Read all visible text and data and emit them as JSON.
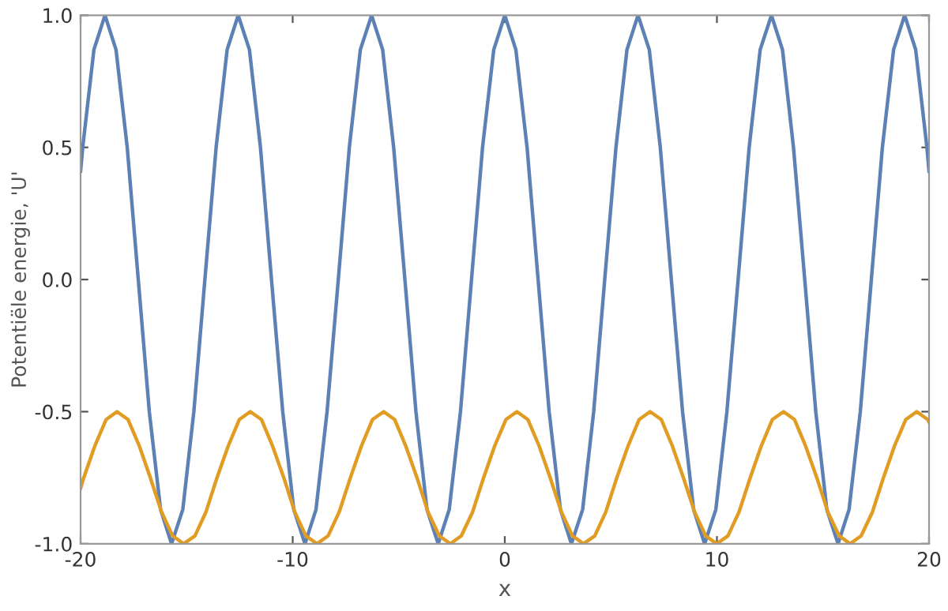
{
  "chart_data": {
    "type": "line",
    "xlabel": "x",
    "ylabel": "Potentiële energie, 'U'",
    "xlim": [
      -20,
      20
    ],
    "ylim": [
      -1,
      1
    ],
    "xticks": [
      -20,
      -10,
      0,
      10,
      20
    ],
    "yticks": [
      {
        "value": -1,
        "label": "-1.0"
      },
      {
        "value": -0.5,
        "label": "-0.5"
      },
      {
        "value": 0,
        "label": "0.0"
      },
      {
        "value": 0.5,
        "label": "0.5"
      },
      {
        "value": 1,
        "label": "1.0"
      }
    ],
    "grid": false,
    "legend": false,
    "marker": "none",
    "line_style": "solid",
    "series": [
      {
        "color": "#5e81b5",
        "x": [
          -20,
          -19.9,
          -19.37,
          -18.85,
          -18.33,
          -17.8,
          -17.28,
          -16.76,
          -16.23,
          -15.71,
          -15.18,
          -14.66,
          -14.14,
          -13.61,
          -13.09,
          -12.57,
          -12.04,
          -11.52,
          -11.0,
          -10.47,
          -9.95,
          -9.42,
          -8.9,
          -8.38,
          -7.85,
          -7.33,
          -6.81,
          -6.28,
          -5.76,
          -5.24,
          -4.71,
          -4.19,
          -3.67,
          -3.14,
          -2.62,
          -2.09,
          -1.57,
          -1.05,
          -0.52,
          0,
          0.52,
          1.05,
          1.57,
          2.09,
          2.62,
          3.14,
          3.67,
          4.19,
          4.71,
          5.24,
          5.76,
          6.28,
          6.81,
          7.33,
          7.85,
          8.38,
          8.9,
          9.42,
          9.95,
          10.47,
          11.0,
          11.52,
          12.04,
          12.57,
          13.09,
          13.61,
          14.14,
          14.66,
          15.18,
          15.71,
          16.23,
          16.76,
          17.28,
          17.8,
          18.33,
          18.85,
          19.37,
          19.9,
          20
        ],
        "values": [
          0.41,
          0.5,
          0.87,
          1,
          0.87,
          0.5,
          0,
          -0.5,
          -0.87,
          -1,
          -0.87,
          -0.5,
          0,
          0.5,
          0.87,
          1,
          0.87,
          0.5,
          0,
          -0.5,
          -0.87,
          -1,
          -0.87,
          -0.5,
          0,
          0.5,
          0.87,
          1,
          0.87,
          0.5,
          0,
          -0.5,
          -0.87,
          -1,
          -0.87,
          -0.5,
          0,
          0.5,
          0.87,
          1,
          0.87,
          0.5,
          0,
          -0.5,
          -0.87,
          -1,
          -0.87,
          -0.5,
          0,
          0.5,
          0.87,
          1,
          0.87,
          0.5,
          0,
          -0.5,
          -0.87,
          -1,
          -0.87,
          -0.5,
          0,
          0.5,
          0.87,
          1,
          0.87,
          0.5,
          0,
          -0.5,
          -0.87,
          -1,
          -0.87,
          -0.5,
          0,
          0.5,
          0.87,
          1,
          0.87,
          0.5,
          0.41
        ]
      },
      {
        "color": "#e19c24",
        "x": [
          -20,
          -19.85,
          -19.33,
          -18.8,
          -18.28,
          -17.76,
          -17.23,
          -16.71,
          -16.18,
          -15.66,
          -15.14,
          -14.61,
          -14.09,
          -13.57,
          -13.04,
          -12.52,
          -12.0,
          -11.47,
          -10.95,
          -10.42,
          -9.9,
          -9.38,
          -8.85,
          -8.33,
          -7.81,
          -7.28,
          -6.76,
          -6.24,
          -5.71,
          -5.19,
          -4.67,
          -4.14,
          -3.62,
          -3.09,
          -2.57,
          -2.05,
          -1.52,
          -1.0,
          -0.48,
          0.05,
          0.57,
          1.09,
          1.62,
          2.14,
          2.67,
          3.19,
          3.71,
          4.24,
          4.76,
          5.28,
          5.81,
          6.33,
          6.85,
          7.38,
          7.9,
          8.42,
          8.95,
          9.47,
          9.99,
          10.52,
          11.04,
          11.57,
          12.09,
          12.61,
          13.14,
          13.66,
          14.18,
          14.71,
          15.23,
          15.76,
          16.28,
          16.8,
          17.33,
          17.85,
          18.37,
          18.9,
          19.42,
          19.94,
          20
        ],
        "values": [
          -0.79,
          -0.75,
          -0.63,
          -0.53,
          -0.5,
          -0.53,
          -0.63,
          -0.75,
          -0.88,
          -0.97,
          -1,
          -0.97,
          -0.88,
          -0.75,
          -0.63,
          -0.53,
          -0.5,
          -0.53,
          -0.63,
          -0.75,
          -0.88,
          -0.97,
          -1,
          -0.97,
          -0.88,
          -0.75,
          -0.63,
          -0.53,
          -0.5,
          -0.53,
          -0.63,
          -0.75,
          -0.88,
          -0.97,
          -1,
          -0.97,
          -0.88,
          -0.75,
          -0.63,
          -0.53,
          -0.5,
          -0.53,
          -0.63,
          -0.75,
          -0.88,
          -0.97,
          -1,
          -0.97,
          -0.88,
          -0.75,
          -0.63,
          -0.53,
          -0.5,
          -0.53,
          -0.63,
          -0.75,
          -0.88,
          -0.97,
          -1,
          -0.97,
          -0.88,
          -0.75,
          -0.63,
          -0.53,
          -0.5,
          -0.53,
          -0.63,
          -0.75,
          -0.88,
          -0.97,
          -1,
          -0.97,
          -0.88,
          -0.75,
          -0.63,
          -0.53,
          -0.5,
          -0.53,
          -0.54
        ]
      }
    ]
  }
}
